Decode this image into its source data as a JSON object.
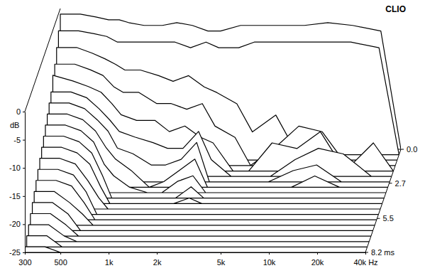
{
  "chart_data": {
    "type": "waterfall",
    "title": "CLIO",
    "y_label": "dB",
    "color": "#000000",
    "log": "x",
    "x": [
      300,
      400,
      500,
      600,
      700,
      800,
      1000,
      1300,
      1600,
      2000,
      2500,
      3000,
      4000,
      5000,
      7000,
      10000,
      14000,
      20000,
      30000,
      40000
    ],
    "xlim": [
      300,
      40000
    ],
    "xticks": [
      300,
      500,
      {
        "value": 1000,
        "label": "1k"
      },
      {
        "value": 2000,
        "label": "2k"
      },
      {
        "value": 5000,
        "label": "5k"
      },
      {
        "value": 10000,
        "label": "10k"
      },
      {
        "value": 20000,
        "label": "20k"
      },
      {
        "value": 40000,
        "label": "40k Hz"
      }
    ],
    "ylim": [
      -25,
      0
    ],
    "yticks": [
      0,
      -5,
      -10,
      -15,
      -20,
      -25
    ],
    "zlim": [
      0,
      8.2
    ],
    "zticks": [
      {
        "value": 0,
        "label": "0.0"
      },
      2.7,
      5.5,
      {
        "value": 8.2,
        "label": "8.2 ms"
      }
    ],
    "series": [
      {
        "z": 0,
        "values": [
          -1,
          -1,
          -1.5,
          -2,
          -2,
          -2.5,
          -3,
          -3,
          -2.5,
          -3,
          -4,
          -4,
          -3,
          -3,
          -3,
          -3,
          -2.5,
          -3,
          -4,
          -25
        ]
      },
      {
        "z": 0.43,
        "values": [
          -3,
          -3,
          -3.5,
          -4,
          -5,
          -5,
          -5,
          -5,
          -5,
          -6,
          -5,
          -6,
          -6,
          -5,
          -5,
          -5,
          -5,
          -5,
          -6,
          -25
        ]
      },
      {
        "z": 0.86,
        "values": [
          -5,
          -5,
          -6,
          -7,
          -8,
          -9,
          -9,
          -10,
          -11,
          -10,
          -12,
          -13,
          -15,
          -20,
          -17,
          -25,
          -25,
          -25,
          -25,
          -25
        ]
      },
      {
        "z": 1.29,
        "values": [
          -7,
          -7,
          -8,
          -9,
          -11,
          -12,
          -12,
          -14,
          -14,
          -15,
          -14,
          -18,
          -20,
          -25,
          -22,
          -18,
          -19,
          -25,
          -25,
          -25
        ]
      },
      {
        "z": 1.73,
        "values": [
          -8,
          -9,
          -10,
          -11,
          -13,
          -15,
          -16,
          -16,
          -18,
          -17,
          -19,
          -20,
          -25,
          -25,
          -20,
          -21,
          -18,
          -25,
          -20,
          -25
        ]
      },
      {
        "z": 2.16,
        "values": [
          -10,
          -10,
          -11,
          -13,
          -15,
          -17,
          -18,
          -19,
          -20,
          -20,
          -17,
          -22,
          -25,
          -25,
          -25,
          -22,
          -20,
          -21,
          -25,
          -25
        ]
      },
      {
        "z": 2.59,
        "values": [
          -11,
          -11,
          -12,
          -14,
          -16,
          -19,
          -20,
          -22,
          -22,
          -21,
          -18,
          -25,
          -25,
          -25,
          -25,
          -23,
          -22,
          -25,
          -25,
          -25
        ]
      },
      {
        "z": 3.02,
        "values": [
          -12,
          -12,
          -13,
          -15,
          -18,
          -20,
          -22,
          -25,
          -24,
          -22,
          -20,
          -25,
          -25,
          -25,
          -25,
          -25,
          -23,
          -25,
          -25,
          -25
        ]
      },
      {
        "z": 3.45,
        "values": [
          -13,
          -13,
          -14,
          -16,
          -20,
          -22,
          -24,
          -25,
          -25,
          -23,
          -22,
          -25,
          -25,
          -25,
          -25,
          -25,
          -25,
          -25,
          -25,
          -25
        ]
      },
      {
        "z": 3.88,
        "values": [
          -14,
          -14,
          -15,
          -17,
          -21,
          -25,
          -25,
          -25,
          -25,
          -25,
          -23,
          -25,
          -25,
          -25,
          -25,
          -25,
          -25,
          -25,
          -25,
          -25
        ]
      },
      {
        "z": 4.32,
        "values": [
          -15,
          -15,
          -16,
          -18,
          -22,
          -25,
          -25,
          -25,
          -25,
          -25,
          -24,
          -25,
          -25,
          -25,
          -25,
          -25,
          -25,
          -25,
          -25,
          -25
        ]
      },
      {
        "z": 4.75,
        "values": [
          -16,
          -16,
          -17,
          -20,
          -23,
          -25,
          -25,
          -25,
          -25,
          -25,
          -25,
          -25,
          -25,
          -25,
          -25,
          -25,
          -25,
          -25,
          -25,
          -25
        ]
      },
      {
        "z": 5.18,
        "values": [
          -17,
          -17,
          -18,
          -21,
          -25,
          -25,
          -25,
          -25,
          -25,
          -25,
          -25,
          -25,
          -25,
          -25,
          -25,
          -25,
          -25,
          -25,
          -25,
          -25
        ]
      },
      {
        "z": 5.61,
        "values": [
          -18,
          -18,
          -19,
          -22,
          -25,
          -25,
          -25,
          -25,
          -25,
          -25,
          -25,
          -25,
          -25,
          -25,
          -25,
          -25,
          -25,
          -25,
          -25,
          -25
        ]
      },
      {
        "z": 6.04,
        "values": [
          -19,
          -19,
          -21,
          -23,
          -25,
          -25,
          -25,
          -25,
          -25,
          -25,
          -25,
          -25,
          -25,
          -25,
          -25,
          -25,
          -25,
          -25,
          -25,
          -25
        ]
      },
      {
        "z": 6.47,
        "values": [
          -20,
          -20,
          -22,
          -25,
          -25,
          -25,
          -25,
          -25,
          -25,
          -25,
          -25,
          -25,
          -25,
          -25,
          -25,
          -25,
          -25,
          -25,
          -25,
          -25
        ]
      },
      {
        "z": 6.91,
        "values": [
          -21,
          -21,
          -23,
          -25,
          -25,
          -25,
          -25,
          -25,
          -25,
          -25,
          -25,
          -25,
          -25,
          -25,
          -25,
          -25,
          -25,
          -25,
          -25,
          -25
        ]
      },
      {
        "z": 7.34,
        "values": [
          -22,
          -22,
          -24,
          -25,
          -25,
          -25,
          -25,
          -25,
          -25,
          -25,
          -25,
          -25,
          -25,
          -25,
          -25,
          -25,
          -25,
          -25,
          -25,
          -25
        ]
      },
      {
        "z": 7.77,
        "values": [
          -23,
          -23,
          -25,
          -25,
          -25,
          -25,
          -25,
          -25,
          -25,
          -25,
          -25,
          -25,
          -25,
          -25,
          -25,
          -25,
          -25,
          -25,
          -25,
          -25
        ]
      },
      {
        "z": 8.2,
        "values": [
          -24,
          -24,
          -25,
          -25,
          -25,
          -25,
          -25,
          -25,
          -25,
          -25,
          -25,
          -25,
          -25,
          -25,
          -25,
          -25,
          -25,
          -25,
          -25,
          -25
        ]
      }
    ]
  }
}
